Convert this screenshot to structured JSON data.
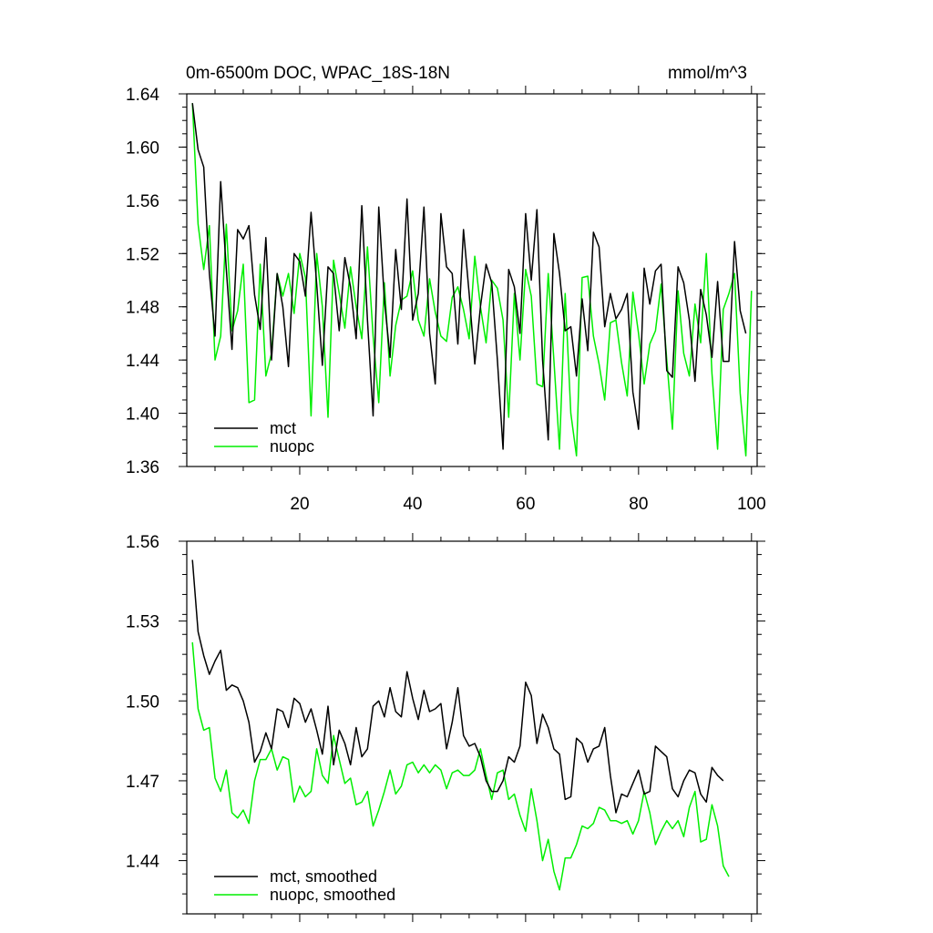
{
  "chart_data": [
    {
      "type": "line",
      "title": "0m-6500m DOC, WPAC_18S-18N",
      "units": "mmol/m^3",
      "xlim": [
        0,
        101
      ],
      "ylim": [
        1.36,
        1.64
      ],
      "xticks": [
        20,
        40,
        60,
        80,
        100
      ],
      "yticks": [
        1.36,
        1.4,
        1.44,
        1.48,
        1.52,
        1.56,
        1.6,
        1.64
      ],
      "ytick_labels": [
        "1.36",
        "1.40",
        "1.44",
        "1.48",
        "1.52",
        "1.56",
        "1.60",
        "1.64"
      ],
      "legend_position": "bottom-left",
      "series": [
        {
          "name": "mct",
          "color": "#000000",
          "values": [
            1.633,
            1.598,
            1.585,
            1.505,
            1.458,
            1.574,
            1.508,
            1.448,
            1.538,
            1.531,
            1.541,
            1.489,
            1.463,
            1.532,
            1.44,
            1.505,
            1.48,
            1.435,
            1.52,
            1.514,
            1.488,
            1.551,
            1.497,
            1.436,
            1.51,
            1.505,
            1.462,
            1.517,
            1.495,
            1.456,
            1.556,
            1.47,
            1.398,
            1.555,
            1.485,
            1.442,
            1.523,
            1.478,
            1.561,
            1.47,
            1.49,
            1.555,
            1.46,
            1.422,
            1.55,
            1.51,
            1.505,
            1.452,
            1.538,
            1.49,
            1.437,
            1.48,
            1.512,
            1.498,
            1.44,
            1.373,
            1.508,
            1.495,
            1.46,
            1.55,
            1.5,
            1.553,
            1.44,
            1.38,
            1.535,
            1.505,
            1.462,
            1.465,
            1.428,
            1.486,
            1.447,
            1.536,
            1.525,
            1.465,
            1.49,
            1.471,
            1.478,
            1.49,
            1.416,
            1.388,
            1.509,
            1.482,
            1.507,
            1.512,
            1.432,
            1.427,
            1.51,
            1.498,
            1.47,
            1.424,
            1.493,
            1.474,
            1.442,
            1.499,
            1.439,
            1.439,
            1.529,
            1.477,
            1.46
          ]
        },
        {
          "name": "nuopc",
          "color": "#00ee00",
          "values": [
            1.633,
            1.542,
            1.508,
            1.541,
            1.44,
            1.458,
            1.542,
            1.462,
            1.477,
            1.512,
            1.408,
            1.41,
            1.512,
            1.428,
            1.445,
            1.505,
            1.488,
            1.505,
            1.475,
            1.52,
            1.502,
            1.398,
            1.52,
            1.48,
            1.397,
            1.515,
            1.49,
            1.464,
            1.51,
            1.48,
            1.456,
            1.525,
            1.458,
            1.408,
            1.498,
            1.428,
            1.466,
            1.485,
            1.488,
            1.507,
            1.47,
            1.458,
            1.501,
            1.476,
            1.458,
            1.454,
            1.487,
            1.495,
            1.478,
            1.456,
            1.518,
            1.48,
            1.453,
            1.5,
            1.494,
            1.47,
            1.397,
            1.49,
            1.44,
            1.508,
            1.488,
            1.422,
            1.42,
            1.505,
            1.44,
            1.373,
            1.49,
            1.4,
            1.368,
            1.502,
            1.503,
            1.458,
            1.437,
            1.41,
            1.468,
            1.47,
            1.438,
            1.413,
            1.491,
            1.46,
            1.422,
            1.452,
            1.462,
            1.497,
            1.44,
            1.388,
            1.492,
            1.445,
            1.428,
            1.482,
            1.453,
            1.52,
            1.43,
            1.373,
            1.478,
            1.49,
            1.505,
            1.415,
            1.368,
            1.492
          ]
        }
      ]
    },
    {
      "type": "line",
      "xlim": [
        0,
        101
      ],
      "ylim": [
        1.42,
        1.56
      ],
      "xticks": [
        20,
        40,
        60,
        80,
        100
      ],
      "yticks": [
        1.44,
        1.47,
        1.5,
        1.53,
        1.56
      ],
      "ytick_labels": [
        "1.44",
        "1.47",
        "1.50",
        "1.53",
        "1.56"
      ],
      "legend_position": "bottom-left",
      "series": [
        {
          "name": "mct, smoothed",
          "color": "#000000",
          "values": [
            1.553,
            1.526,
            1.517,
            1.51,
            1.515,
            1.519,
            1.504,
            1.506,
            1.505,
            1.5,
            1.492,
            1.477,
            1.481,
            1.488,
            1.482,
            1.497,
            1.496,
            1.49,
            1.501,
            1.499,
            1.492,
            1.497,
            1.489,
            1.48,
            1.498,
            1.476,
            1.489,
            1.484,
            1.476,
            1.49,
            1.479,
            1.482,
            1.498,
            1.5,
            1.494,
            1.505,
            1.496,
            1.494,
            1.511,
            1.501,
            1.493,
            1.504,
            1.496,
            1.497,
            1.499,
            1.482,
            1.492,
            1.505,
            1.487,
            1.483,
            1.484,
            1.479,
            1.47,
            1.466,
            1.466,
            1.47,
            1.479,
            1.477,
            1.483,
            1.507,
            1.502,
            1.484,
            1.495,
            1.49,
            1.482,
            1.48,
            1.463,
            1.464,
            1.486,
            1.484,
            1.477,
            1.482,
            1.483,
            1.49,
            1.472,
            1.458,
            1.465,
            1.464,
            1.469,
            1.474,
            1.465,
            1.466,
            1.483,
            1.481,
            1.479,
            1.467,
            1.464,
            1.47,
            1.474,
            1.473,
            1.465,
            1.462,
            1.475,
            1.472,
            1.47
          ]
        },
        {
          "name": "nuopc, smoothed",
          "color": "#00ee00",
          "values": [
            1.522,
            1.497,
            1.489,
            1.49,
            1.471,
            1.466,
            1.474,
            1.458,
            1.456,
            1.459,
            1.454,
            1.47,
            1.478,
            1.478,
            1.482,
            1.474,
            1.479,
            1.478,
            1.462,
            1.468,
            1.464,
            1.466,
            1.482,
            1.472,
            1.469,
            1.487,
            1.478,
            1.469,
            1.471,
            1.461,
            1.462,
            1.466,
            1.453,
            1.459,
            1.466,
            1.474,
            1.465,
            1.468,
            1.476,
            1.477,
            1.473,
            1.476,
            1.473,
            1.476,
            1.474,
            1.467,
            1.473,
            1.474,
            1.472,
            1.472,
            1.474,
            1.482,
            1.472,
            1.463,
            1.473,
            1.474,
            1.463,
            1.465,
            1.457,
            1.451,
            1.467,
            1.455,
            1.44,
            1.448,
            1.436,
            1.429,
            1.441,
            1.441,
            1.446,
            1.453,
            1.452,
            1.454,
            1.46,
            1.459,
            1.455,
            1.455,
            1.454,
            1.455,
            1.45,
            1.455,
            1.466,
            1.458,
            1.446,
            1.451,
            1.455,
            1.452,
            1.455,
            1.449,
            1.46,
            1.466,
            1.447,
            1.448,
            1.461,
            1.453,
            1.438,
            1.434
          ]
        }
      ]
    }
  ]
}
